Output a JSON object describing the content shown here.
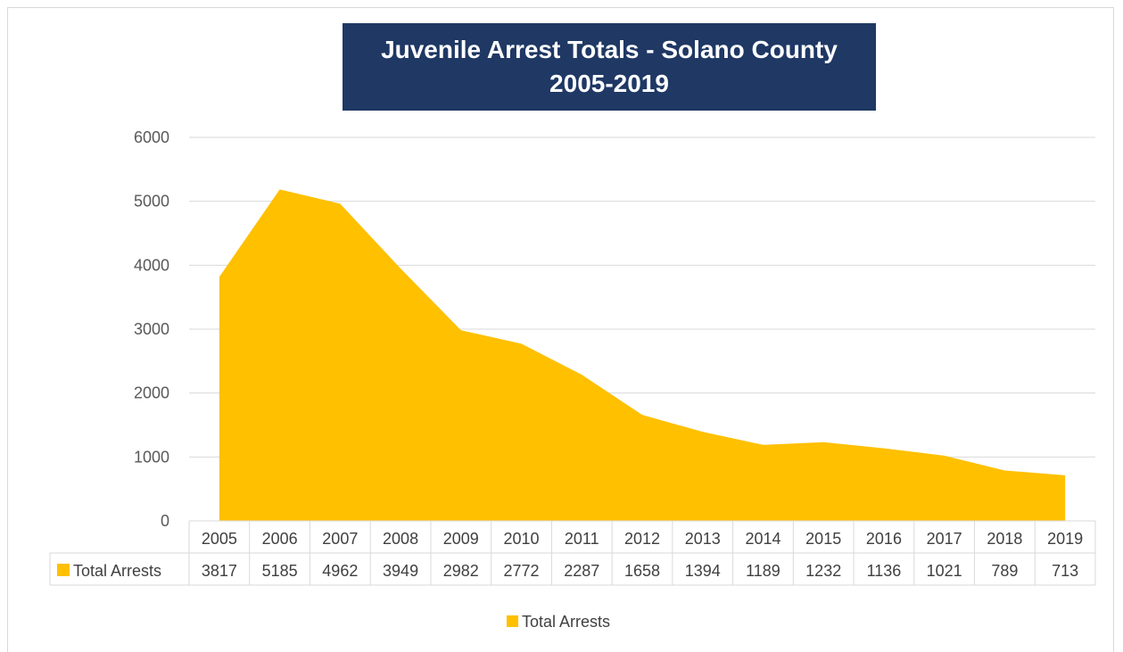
{
  "chart_data": {
    "type": "area",
    "title_line1": "Juvenile Arrest Totals - Solano County",
    "title_line2": "2005-2019",
    "categories": [
      "2005",
      "2006",
      "2007",
      "2008",
      "2009",
      "2010",
      "2011",
      "2012",
      "2013",
      "2014",
      "2015",
      "2016",
      "2017",
      "2018",
      "2019"
    ],
    "series": [
      {
        "name": "Total Arrests",
        "values": [
          3817,
          5185,
          4962,
          3949,
          2982,
          2772,
          2287,
          1658,
          1394,
          1189,
          1232,
          1136,
          1021,
          789,
          713
        ]
      }
    ],
    "ylim": [
      0,
      6000
    ],
    "yticks": [
      "0",
      "1000",
      "2000",
      "3000",
      "4000",
      "5000",
      "6000"
    ],
    "grid": true,
    "legend_placement": "bottom",
    "data_table": true,
    "colors": {
      "series": "#ffc000",
      "title_bg": "#1f3864",
      "grid": "#d9d9d9"
    }
  }
}
